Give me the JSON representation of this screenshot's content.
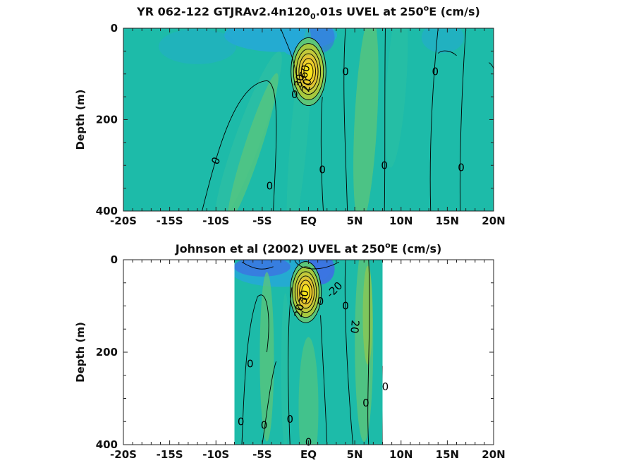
{
  "chart_data": [
    {
      "type": "heatmap",
      "subtype": "filled-contour",
      "title_parts": [
        "YR 062-122 GTJRAv2.4n120",
        "0",
        ".01s UVEL at 250",
        "o",
        "E (cm/s)"
      ],
      "xlabel": "",
      "ylabel": "Depth (m)",
      "x_tick_labels": [
        "-20S",
        "-15S",
        "-10S",
        "-5S",
        "EQ",
        "5N",
        "10N",
        "15N",
        "20N"
      ],
      "x_ticks": [
        -20,
        -15,
        -10,
        -5,
        0,
        5,
        10,
        15,
        20
      ],
      "y_tick_labels": [
        "0",
        "200",
        "400"
      ],
      "y_ticks": [
        0,
        200,
        400
      ],
      "xlim": [
        -20,
        20
      ],
      "ylim": [
        0,
        400
      ],
      "y_reversed": true,
      "data_xrange": [
        -20,
        20
      ],
      "colormap": [
        "#3e6fe3",
        "#26a8d8",
        "#1dbba9",
        "#2bbfa4",
        "#5cc679",
        "#a7c93e",
        "#e0c331",
        "#f8e21c"
      ],
      "jet": {
        "lat": 0,
        "depth": 95,
        "peak_speed": 90,
        "half_width_lat": 0.9,
        "half_depth": 45
      },
      "contour_labels": [
        {
          "text": "0",
          "lat": -10,
          "depth": 290,
          "angle": -65
        },
        {
          "text": "0",
          "lat": -4.2,
          "depth": 345,
          "angle": 0
        },
        {
          "text": "0",
          "lat": 1.5,
          "depth": 310,
          "angle": 0
        },
        {
          "text": "0",
          "lat": 4,
          "depth": 95,
          "angle": 0
        },
        {
          "text": "0",
          "lat": 8.2,
          "depth": 300,
          "angle": 0
        },
        {
          "text": "0",
          "lat": 13.7,
          "depth": 95,
          "angle": 0
        },
        {
          "text": "0",
          "lat": 16.5,
          "depth": 305,
          "angle": 0
        },
        {
          "text": "60",
          "lat": -0.4,
          "depth": 95,
          "angle": -75
        },
        {
          "text": "30",
          "lat": -1.0,
          "depth": 115,
          "angle": -75
        },
        {
          "text": "20",
          "lat": -0.2,
          "depth": 125,
          "angle": -80
        },
        {
          "text": "0",
          "lat": -1.5,
          "depth": 145,
          "angle": 0
        }
      ]
    },
    {
      "type": "heatmap",
      "subtype": "filled-contour",
      "title_parts": [
        "Johnson et al (2002) UVEL at 250",
        "o",
        "E (cm/s)"
      ],
      "xlabel": "",
      "ylabel": "Depth (m)",
      "x_tick_labels": [
        "-20S",
        "-15S",
        "-10S",
        "-5S",
        "EQ",
        "5N",
        "10N",
        "15N",
        "20N"
      ],
      "x_ticks": [
        -20,
        -15,
        -10,
        -5,
        0,
        5,
        10,
        15,
        20
      ],
      "y_tick_labels": [
        "0",
        "200",
        "400"
      ],
      "y_ticks": [
        0,
        200,
        400
      ],
      "xlim": [
        -20,
        20
      ],
      "ylim": [
        0,
        400
      ],
      "y_reversed": true,
      "data_xrange": [
        -8,
        8
      ],
      "colormap": [
        "#3e6fe3",
        "#26a8d8",
        "#1dbba9",
        "#2bbfa4",
        "#5cc679",
        "#a7c93e",
        "#e0c331",
        "#f8e21c"
      ],
      "jet": {
        "lat": -0.3,
        "depth": 70,
        "peak_speed": 90,
        "half_width_lat": 0.8,
        "half_depth": 40
      },
      "contour_labels": [
        {
          "text": "-20",
          "lat": 2.8,
          "depth": 65,
          "angle": -45
        },
        {
          "text": "30",
          "lat": -0.5,
          "depth": 80,
          "angle": -80
        },
        {
          "text": "0",
          "lat": 1.3,
          "depth": 90,
          "angle": 0
        },
        {
          "text": "20",
          "lat": -1.0,
          "depth": 110,
          "angle": -80
        },
        {
          "text": "0",
          "lat": 4,
          "depth": 100,
          "angle": 0
        },
        {
          "text": "20",
          "lat": 5,
          "depth": 145,
          "angle": 95
        },
        {
          "text": "0",
          "lat": -6.3,
          "depth": 225,
          "angle": 0
        },
        {
          "text": "0",
          "lat": 8.3,
          "depth": 275,
          "angle": 0
        },
        {
          "text": "0",
          "lat": 6.2,
          "depth": 310,
          "angle": 0
        },
        {
          "text": "0",
          "lat": -7.3,
          "depth": 350,
          "angle": 0
        },
        {
          "text": "0",
          "lat": -4.8,
          "depth": 358,
          "angle": 0
        },
        {
          "text": "0",
          "lat": -2,
          "depth": 345,
          "angle": 0
        },
        {
          "text": "0",
          "lat": 0,
          "depth": 395,
          "angle": 0
        }
      ]
    }
  ]
}
